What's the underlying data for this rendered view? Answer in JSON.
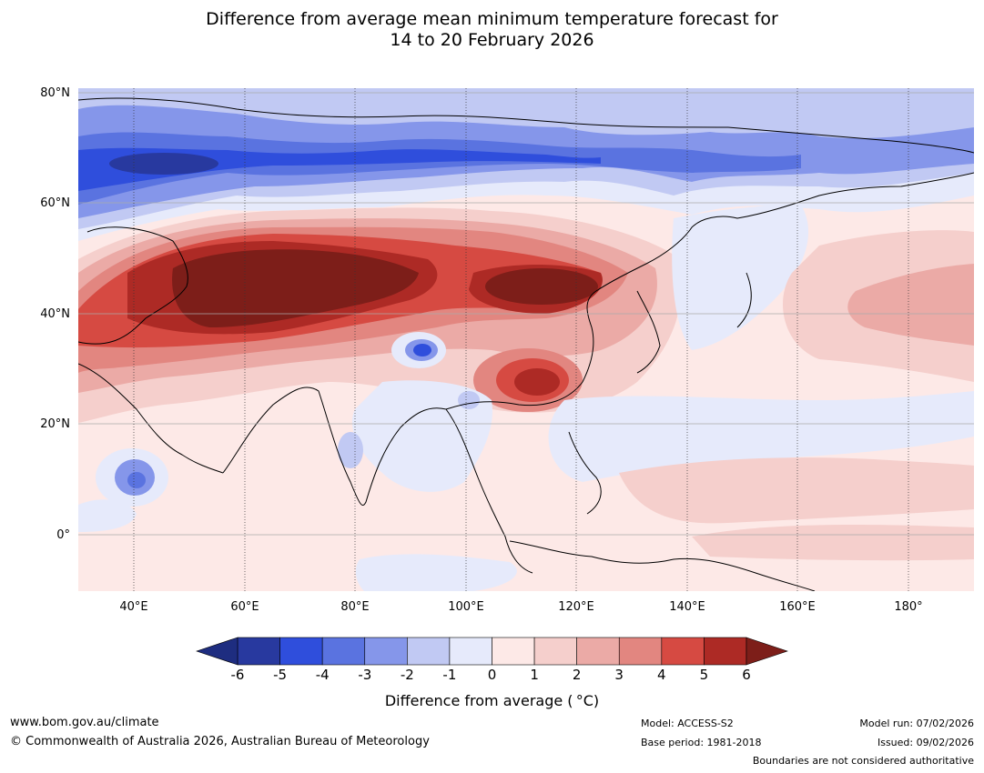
{
  "title": {
    "line1": "Difference from average mean minimum temperature forecast for",
    "line2": "14 to 20 February 2026"
  },
  "map": {
    "lat_labels": [
      "80°N",
      "60°N",
      "40°N",
      "20°N",
      "0°"
    ],
    "lon_labels": [
      "40°E",
      "60°E",
      "80°E",
      "100°E",
      "120°E",
      "140°E",
      "160°E",
      "180°"
    ],
    "lat_values": [
      80,
      60,
      40,
      20,
      0
    ],
    "lon_values": [
      40,
      60,
      80,
      100,
      120,
      140,
      160,
      180
    ],
    "extent": {
      "lon_min": 30,
      "lon_max": 190,
      "lat_min": -10,
      "lat_max": 80
    },
    "anomaly_regions": [
      {
        "name": "arctic-cold-band",
        "lon": 70,
        "lat": 73,
        "value": -4
      },
      {
        "name": "siberia-cold",
        "lon": 130,
        "lat": 71,
        "value": -3
      },
      {
        "name": "central-asia-warm",
        "lon": 70,
        "lat": 45,
        "value": 6
      },
      {
        "name": "mongolia-warm",
        "lon": 110,
        "lat": 46,
        "value": 6
      },
      {
        "name": "south-china-warm",
        "lon": 112,
        "lat": 29,
        "value": 5
      },
      {
        "name": "tibet-cold-spot",
        "lon": 93,
        "lat": 34,
        "value": -4
      },
      {
        "name": "ethiopia-cold-spot",
        "lon": 40,
        "lat": 10,
        "value": -3
      },
      {
        "name": "pacific-warm",
        "lon": 175,
        "lat": 35,
        "value": 2
      }
    ]
  },
  "colorbar": {
    "ticks": [
      "-6",
      "-5",
      "-4",
      "-3",
      "-2",
      "-1",
      "0",
      "1",
      "2",
      "3",
      "4",
      "5",
      "6"
    ],
    "colors": [
      "#28399f",
      "#2f4edc",
      "#5a73e0",
      "#8596ea",
      "#c1c9f3",
      "#e6eafb",
      "#fde9e7",
      "#f5cfcc",
      "#ebaaa6",
      "#e28680",
      "#d64a42",
      "#ad2a25"
    ],
    "under_color": "#1e2d80",
    "over_color": "#7d1e19",
    "label": "Difference from average ( °C)"
  },
  "footer": {
    "url": "www.bom.gov.au/climate",
    "copyright": "© Commonwealth of Australia 2026, Australian Bureau of Meteorology",
    "model": "Model: ACCESS-S2",
    "base_period": "Base period: 1981-2018",
    "model_run": "Model run: 07/02/2026",
    "issued": "Issued: 09/02/2026",
    "boundaries": "Boundaries are not considered authoritative"
  }
}
